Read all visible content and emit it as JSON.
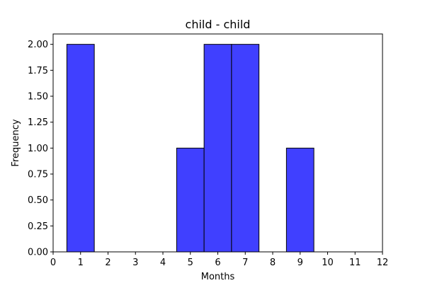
{
  "chart_data": {
    "type": "bar",
    "title": "child - child",
    "xlabel": "Months",
    "ylabel": "Frequency",
    "x": [
      1,
      5,
      6,
      7,
      9
    ],
    "values": [
      2,
      1,
      2,
      2,
      1
    ],
    "bin_width": 1,
    "xlim": [
      0,
      12
    ],
    "ylim": [
      0,
      2.1
    ],
    "xticks": [
      0,
      1,
      2,
      3,
      4,
      5,
      6,
      7,
      8,
      9,
      10,
      11,
      12
    ],
    "yticks": [
      0,
      0.25,
      0.5,
      0.75,
      1.0,
      1.25,
      1.5,
      1.75,
      2.0
    ],
    "xtick_labels": [
      "0",
      "1",
      "2",
      "3",
      "4",
      "5",
      "6",
      "7",
      "8",
      "9",
      "10",
      "11",
      "12"
    ],
    "ytick_labels": [
      "0.00",
      "0.25",
      "0.50",
      "0.75",
      "1.00",
      "1.25",
      "1.50",
      "1.75",
      "2.00"
    ],
    "grid": false,
    "legend": "none",
    "colors": {
      "bar_fill": "#4040ff",
      "bar_edge": "#000000"
    }
  }
}
